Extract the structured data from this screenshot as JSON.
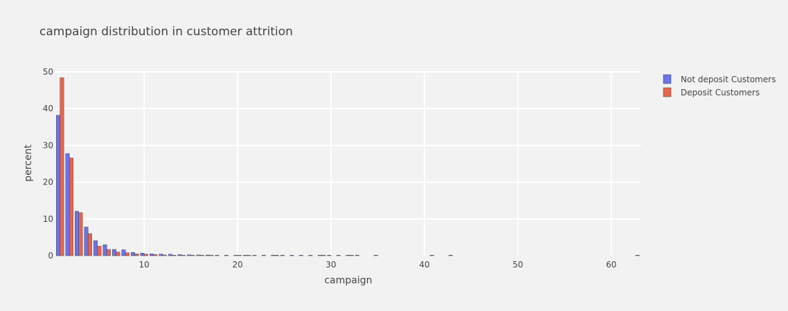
{
  "chart_data": {
    "type": "bar",
    "title": "campaign distribution in customer attrition",
    "xlabel": "campaign",
    "ylabel": "percent",
    "xlim": [
      0.5,
      63.2
    ],
    "ylim": [
      0,
      50
    ],
    "xticks": [
      10,
      20,
      30,
      40,
      50,
      60
    ],
    "yticks": [
      0,
      10,
      20,
      30,
      40,
      50
    ],
    "grid": true,
    "legend_position": "top-right",
    "series": [
      {
        "name": "Not deposit Customers",
        "color": "#6b74e8",
        "x": [
          1,
          2,
          3,
          4,
          5,
          6,
          7,
          8,
          9,
          10,
          11,
          12,
          13,
          14,
          15,
          16,
          17,
          18,
          19,
          20,
          21,
          22,
          23,
          24,
          25,
          26,
          27,
          28,
          29,
          30,
          31,
          32,
          33,
          35,
          41,
          43,
          63
        ],
        "values": [
          38.2,
          27.8,
          12.1,
          7.8,
          4.1,
          3.0,
          1.7,
          1.6,
          0.9,
          0.7,
          0.5,
          0.45,
          0.4,
          0.3,
          0.25,
          0.2,
          0.2,
          0.15,
          0.12,
          0.1,
          0.1,
          0.08,
          0.07,
          0.06,
          0.05,
          0.05,
          0.04,
          0.04,
          0.04,
          0.03,
          0.03,
          0.03,
          0.03,
          0.02,
          0.01,
          0.01,
          0.01
        ]
      },
      {
        "name": "Deposit Customers",
        "color": "#e8654d",
        "x": [
          1,
          2,
          3,
          4,
          5,
          6,
          7,
          8,
          9,
          10,
          11,
          12,
          13,
          14,
          15,
          16,
          17,
          20,
          21,
          24,
          29,
          32
        ],
        "values": [
          48.4,
          26.6,
          11.7,
          6.0,
          2.6,
          1.7,
          1.0,
          0.8,
          0.5,
          0.4,
          0.3,
          0.2,
          0.15,
          0.1,
          0.08,
          0.06,
          0.05,
          0.03,
          0.03,
          0.02,
          0.02,
          0.02
        ]
      }
    ]
  }
}
